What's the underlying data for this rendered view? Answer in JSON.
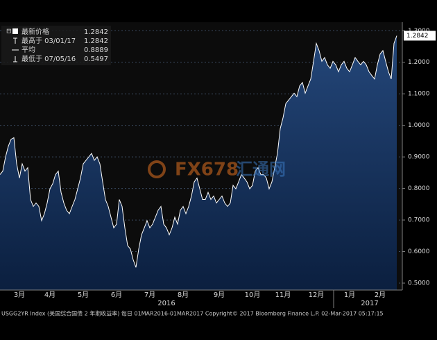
{
  "chart_data": {
    "type": "area",
    "legend": [
      {
        "label": "最新价格",
        "value": 1.2842
      },
      {
        "label": "最高于 03/01/17",
        "value": 1.2842
      },
      {
        "label": "平均",
        "value": 0.8889
      },
      {
        "label": "最低于 07/05/16",
        "value": 0.5497
      }
    ],
    "categories": [
      null,
      null,
      null,
      null,
      null,
      null,
      null,
      "3月",
      null,
      null,
      null,
      null,
      null,
      null,
      null,
      null,
      null,
      null,
      "4月",
      null,
      null,
      null,
      null,
      null,
      null,
      null,
      null,
      null,
      null,
      null,
      "5月",
      null,
      null,
      null,
      null,
      null,
      null,
      null,
      null,
      null,
      null,
      null,
      "6月",
      null,
      null,
      null,
      null,
      null,
      null,
      null,
      null,
      null,
      null,
      null,
      "7月",
      null,
      null,
      null,
      null,
      null,
      null,
      null,
      null,
      null,
      null,
      null,
      "8月",
      null,
      null,
      null,
      null,
      null,
      null,
      null,
      null,
      null,
      null,
      null,
      null,
      "9月",
      null,
      null,
      null,
      null,
      null,
      null,
      null,
      null,
      null,
      null,
      null,
      "10月",
      null,
      null,
      null,
      null,
      null,
      null,
      null,
      null,
      null,
      null,
      "11月",
      null,
      null,
      null,
      null,
      null,
      null,
      null,
      null,
      null,
      null,
      null,
      "12月",
      null,
      null,
      null,
      null,
      null,
      null,
      null,
      null,
      null,
      null,
      null,
      "1月",
      null,
      null,
      null,
      null,
      null,
      null,
      null,
      null,
      null,
      null,
      "2月",
      null,
      null,
      null,
      null,
      null,
      null
    ],
    "series": [
      {
        "color": "#ffffff",
        "values": [
          0.844,
          0.855,
          0.9,
          0.934,
          0.956,
          0.961,
          0.878,
          0.833,
          0.878,
          0.855,
          0.866,
          0.765,
          0.743,
          0.754,
          0.743,
          0.698,
          0.72,
          0.754,
          0.799,
          0.815,
          0.844,
          0.855,
          0.788,
          0.754,
          0.731,
          0.72,
          0.743,
          0.765,
          0.799,
          0.833,
          0.878,
          0.889,
          0.9,
          0.911,
          0.889,
          0.9,
          0.878,
          0.821,
          0.765,
          0.743,
          0.709,
          0.675,
          0.687,
          0.765,
          0.743,
          0.675,
          0.619,
          0.608,
          0.574,
          0.55,
          0.608,
          0.653,
          0.675,
          0.698,
          0.675,
          0.687,
          0.709,
          0.731,
          0.743,
          0.687,
          0.675,
          0.653,
          0.675,
          0.709,
          0.687,
          0.731,
          0.743,
          0.72,
          0.743,
          0.776,
          0.821,
          0.833,
          0.799,
          0.765,
          0.765,
          0.788,
          0.765,
          0.776,
          0.754,
          0.765,
          0.776,
          0.754,
          0.743,
          0.754,
          0.81,
          0.799,
          0.821,
          0.844,
          0.833,
          0.821,
          0.799,
          0.81,
          0.855,
          0.866,
          0.844,
          0.844,
          0.833,
          0.799,
          0.821,
          0.866,
          0.911,
          0.99,
          1.024,
          1.069,
          1.08,
          1.091,
          1.102,
          1.091,
          1.125,
          1.136,
          1.102,
          1.125,
          1.147,
          1.203,
          1.26,
          1.237,
          1.203,
          1.215,
          1.192,
          1.181,
          1.203,
          1.192,
          1.17,
          1.192,
          1.203,
          1.181,
          1.17,
          1.192,
          1.215,
          1.203,
          1.192,
          1.203,
          1.192,
          1.17,
          1.158,
          1.147,
          1.192,
          1.226,
          1.237,
          1.203,
          1.17,
          1.147,
          1.26,
          1.2842
        ]
      }
    ],
    "ylim": [
      0.478,
      1.327
    ],
    "yticks": [
      {
        "value": 0.5,
        "label": "0.5000"
      },
      {
        "value": 0.6,
        "label": "0.6000"
      },
      {
        "value": 0.7,
        "label": "0.7000"
      },
      {
        "value": 0.8,
        "label": "0.8000"
      },
      {
        "value": 0.9,
        "label": "0.9000"
      },
      {
        "value": 1.0,
        "label": "1.0000"
      },
      {
        "value": 1.1,
        "label": "1.1000"
      },
      {
        "value": 1.2,
        "label": "1.2000"
      },
      {
        "value": 1.3,
        "label": "1.3000"
      }
    ],
    "grid": true,
    "year_labels": [
      "2016",
      "2017"
    ],
    "watermark": [
      "FX678",
      "汇通网"
    ],
    "footer": "USGG2YR Index (美国综合国债 2 年期收益率)  每日 01MAR2016-01MAR2017 Copyright© 2017 Bloomberg Finance L.P.  02-Mar-2017 05:17:15"
  }
}
